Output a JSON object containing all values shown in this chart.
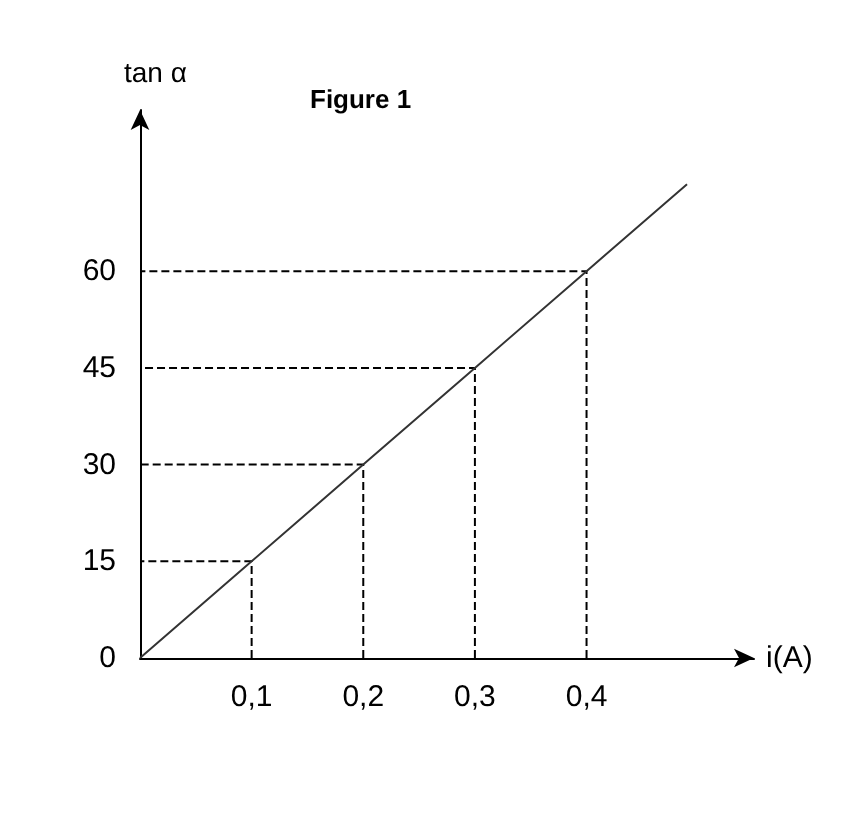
{
  "chart_data": {
    "type": "line",
    "title": "Figure 1",
    "xlabel": "i(A)",
    "ylabel": "tan α",
    "series": [
      {
        "color": "#333333",
        "x": [
          0,
          0.1,
          0.2,
          0.3,
          0.4,
          0.49
        ],
        "values": [
          0,
          15,
          30,
          45,
          60,
          73.5
        ],
        "line_style": "solid"
      },
      {
        "color": "#000000",
        "x": [
          0.1,
          0.1,
          0
        ],
        "values": [
          0,
          15,
          15
        ],
        "line_style": "dashed"
      },
      {
        "color": "#000000",
        "x": [
          0.2,
          0.2,
          0
        ],
        "values": [
          0,
          30,
          30
        ],
        "line_style": "dashed"
      },
      {
        "color": "#000000",
        "x": [
          0.3,
          0.3,
          0
        ],
        "values": [
          0,
          45,
          45
        ],
        "line_style": "dashed"
      },
      {
        "color": "#000000",
        "x": [
          0.4,
          0.4,
          0
        ],
        "values": [
          0,
          60,
          60
        ],
        "line_style": "dashed"
      }
    ],
    "xlim": [
      0,
      0.55
    ],
    "ylim": [
      0,
      85
    ],
    "xticks": [
      {
        "value": 0.1,
        "label": "0,1"
      },
      {
        "value": 0.2,
        "label": "0,2"
      },
      {
        "value": 0.3,
        "label": "0,3"
      },
      {
        "value": 0.4,
        "label": "0,4"
      }
    ],
    "yticks": [
      0,
      15,
      30,
      45,
      60
    ],
    "grid": false,
    "marker": "none"
  }
}
